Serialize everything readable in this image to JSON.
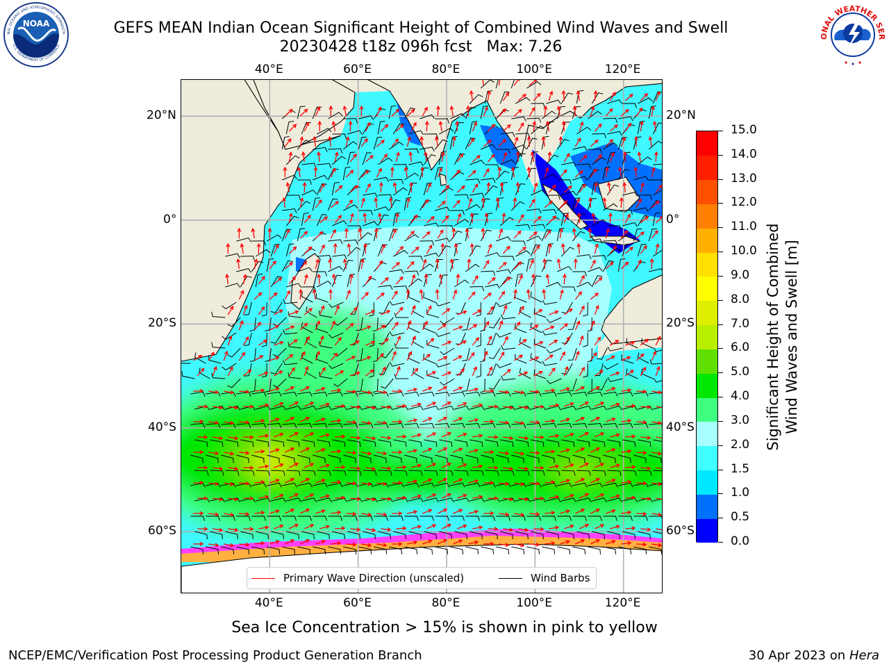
{
  "title": {
    "line1": "GEFS MEAN Indian Ocean Significant Height of Combined Wind Waves and Swell",
    "line2": "20230428 t18z 096h fcst   Max: 7.26"
  },
  "logos": {
    "noaa": {
      "icon": "noaa-logo",
      "center_text": "NOAA",
      "ring_text_top": "NATIONAL OCEANIC AND ATMOSPHERIC ADMINISTRATION",
      "ring_text_bottom": "U.S. DEPARTMENT OF COMMERCE"
    },
    "nws": {
      "icon": "nws-logo",
      "ring_text": "NATIONAL WEATHER SERVICE"
    }
  },
  "map": {
    "projection": "equirectangular",
    "lon_range": [
      20,
      129
    ],
    "lat_range": [
      -72,
      27
    ],
    "lon_ticks": [
      "40°E",
      "60°E",
      "80°E",
      "100°E",
      "120°E"
    ],
    "lon_tick_values": [
      40,
      60,
      80,
      100,
      120
    ],
    "lat_ticks": [
      "20°N",
      "0°",
      "20°S",
      "40°S",
      "60°S"
    ],
    "lat_tick_values": [
      20,
      0,
      -20,
      -40,
      -60
    ],
    "grid": true,
    "land_color": "#efecdc",
    "wave_arrow_color": "#ff0000",
    "wind_barb_color": "#000000",
    "max_value": 7.26
  },
  "legend": {
    "placement": "lower-center",
    "entries": [
      {
        "label": "Primary Wave Direction (unscaled)",
        "color": "#ff0000"
      },
      {
        "label": "Wind Barbs",
        "color": "#000000"
      }
    ]
  },
  "colorbar": {
    "label_line1": "Significant Height of Combined",
    "label_line2": "Wind Waves and Swell [m]",
    "tick_labels": [
      "0.0",
      "0.5",
      "1.0",
      "1.5",
      "2.0",
      "3.0",
      "4.0",
      "5.0",
      "6.0",
      "7.0",
      "8.0",
      "9.0",
      "10.0",
      "11.0",
      "12.0",
      "13.0",
      "14.0",
      "15.0"
    ],
    "colors": [
      "#0000ff",
      "#0070ff",
      "#00e8ff",
      "#40ffff",
      "#a8ffff",
      "#40ff80",
      "#00e800",
      "#60e000",
      "#b8ee00",
      "#ddee00",
      "#ffff00",
      "#ffe000",
      "#ffb000",
      "#ff8000",
      "#ff5000",
      "#ff2000",
      "#ff0000"
    ]
  },
  "caption": "Sea Ice Concentration > 15% is shown in pink to yellow",
  "footer": {
    "left": "NCEP/EMC/Verification Post Processing Product Generation Branch",
    "right_prefix": "30 Apr 2023 on ",
    "right_machine": "Hera"
  }
}
